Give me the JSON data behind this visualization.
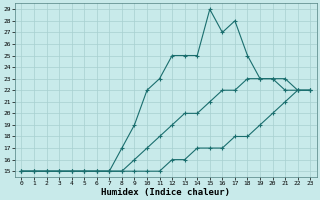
{
  "xlabel": "Humidex (Indice chaleur)",
  "bg_color": "#c8eaea",
  "grid_color": "#a8d0d0",
  "line_color": "#1a6e6e",
  "xlim": [
    -0.5,
    23.5
  ],
  "ylim": [
    14.5,
    29.5
  ],
  "xticks": [
    0,
    1,
    2,
    3,
    4,
    5,
    6,
    7,
    8,
    9,
    10,
    11,
    12,
    13,
    14,
    15,
    16,
    17,
    18,
    19,
    20,
    21,
    22,
    23
  ],
  "yticks": [
    15,
    16,
    17,
    18,
    19,
    20,
    21,
    22,
    23,
    24,
    25,
    26,
    27,
    28,
    29
  ],
  "line1_x": [
    0,
    1,
    2,
    3,
    4,
    5,
    6,
    7,
    8,
    9,
    10,
    11,
    12,
    13,
    14,
    15,
    16,
    17,
    18,
    19,
    20,
    21,
    22,
    23
  ],
  "line1_y": [
    15,
    15,
    15,
    15,
    15,
    15,
    15,
    15,
    17,
    19,
    22,
    23,
    25,
    25,
    25,
    29,
    27,
    28,
    25,
    23,
    23,
    22,
    22,
    22
  ],
  "line2_x": [
    0,
    1,
    2,
    3,
    4,
    5,
    6,
    7,
    8,
    9,
    10,
    11,
    12,
    13,
    14,
    15,
    16,
    17,
    18,
    19,
    20,
    21,
    22,
    23
  ],
  "line2_y": [
    15,
    15,
    15,
    15,
    15,
    15,
    15,
    15,
    15,
    16,
    17,
    18,
    19,
    20,
    20,
    21,
    22,
    22,
    23,
    23,
    23,
    23,
    22,
    22
  ],
  "line3_x": [
    0,
    1,
    2,
    3,
    4,
    5,
    6,
    7,
    8,
    9,
    10,
    11,
    12,
    13,
    14,
    15,
    16,
    17,
    18,
    19,
    20,
    21,
    22,
    23
  ],
  "line3_y": [
    15,
    15,
    15,
    15,
    15,
    15,
    15,
    15,
    15,
    15,
    15,
    15,
    16,
    16,
    17,
    17,
    17,
    18,
    18,
    19,
    20,
    21,
    22,
    22
  ]
}
